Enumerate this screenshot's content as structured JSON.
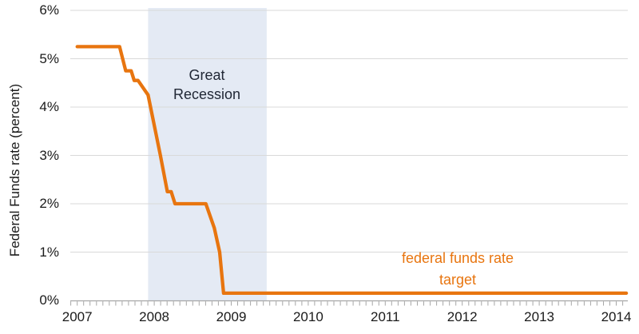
{
  "chart_data": {
    "type": "line",
    "title": "",
    "xlabel": "",
    "ylabel": "Federal Funds rate (percent)",
    "x_ticks": [
      2007,
      2008,
      2009,
      2010,
      2011,
      2012,
      2013,
      2014
    ],
    "y_ticks": [
      "0%",
      "1%",
      "2%",
      "3%",
      "4%",
      "5%",
      "6%"
    ],
    "xlim": [
      2006.91,
      2014.15
    ],
    "ylim": [
      0,
      6
    ],
    "grid": "horizontal gridlines every 1%",
    "legend_position": "none (in-plot series label)",
    "minor_x_tick_interval_years": 0.08333,
    "recession_band": {
      "label": "Great Recession",
      "x_start": 2007.92,
      "x_end": 2009.46
    },
    "series": [
      {
        "name": "federal funds rate target",
        "points": [
          [
            2007.0,
            5.25
          ],
          [
            2007.55,
            5.25
          ],
          [
            2007.63,
            4.75
          ],
          [
            2007.7,
            4.75
          ],
          [
            2007.74,
            4.55
          ],
          [
            2007.79,
            4.55
          ],
          [
            2007.92,
            4.25
          ],
          [
            2008.08,
            3.0
          ],
          [
            2008.17,
            2.25
          ],
          [
            2008.22,
            2.25
          ],
          [
            2008.27,
            2.0
          ],
          [
            2008.67,
            2.0
          ],
          [
            2008.78,
            1.5
          ],
          [
            2008.85,
            1.0
          ],
          [
            2008.9,
            0.15
          ],
          [
            2014.13,
            0.15
          ]
        ]
      }
    ],
    "colors": {
      "line": "#E8750F",
      "band": "#E4EAF4",
      "gridline": "#D9D9D9",
      "axis": "#A6A6A6",
      "tick_text": "#1A1A1A",
      "annotation_text": "#212836"
    }
  }
}
